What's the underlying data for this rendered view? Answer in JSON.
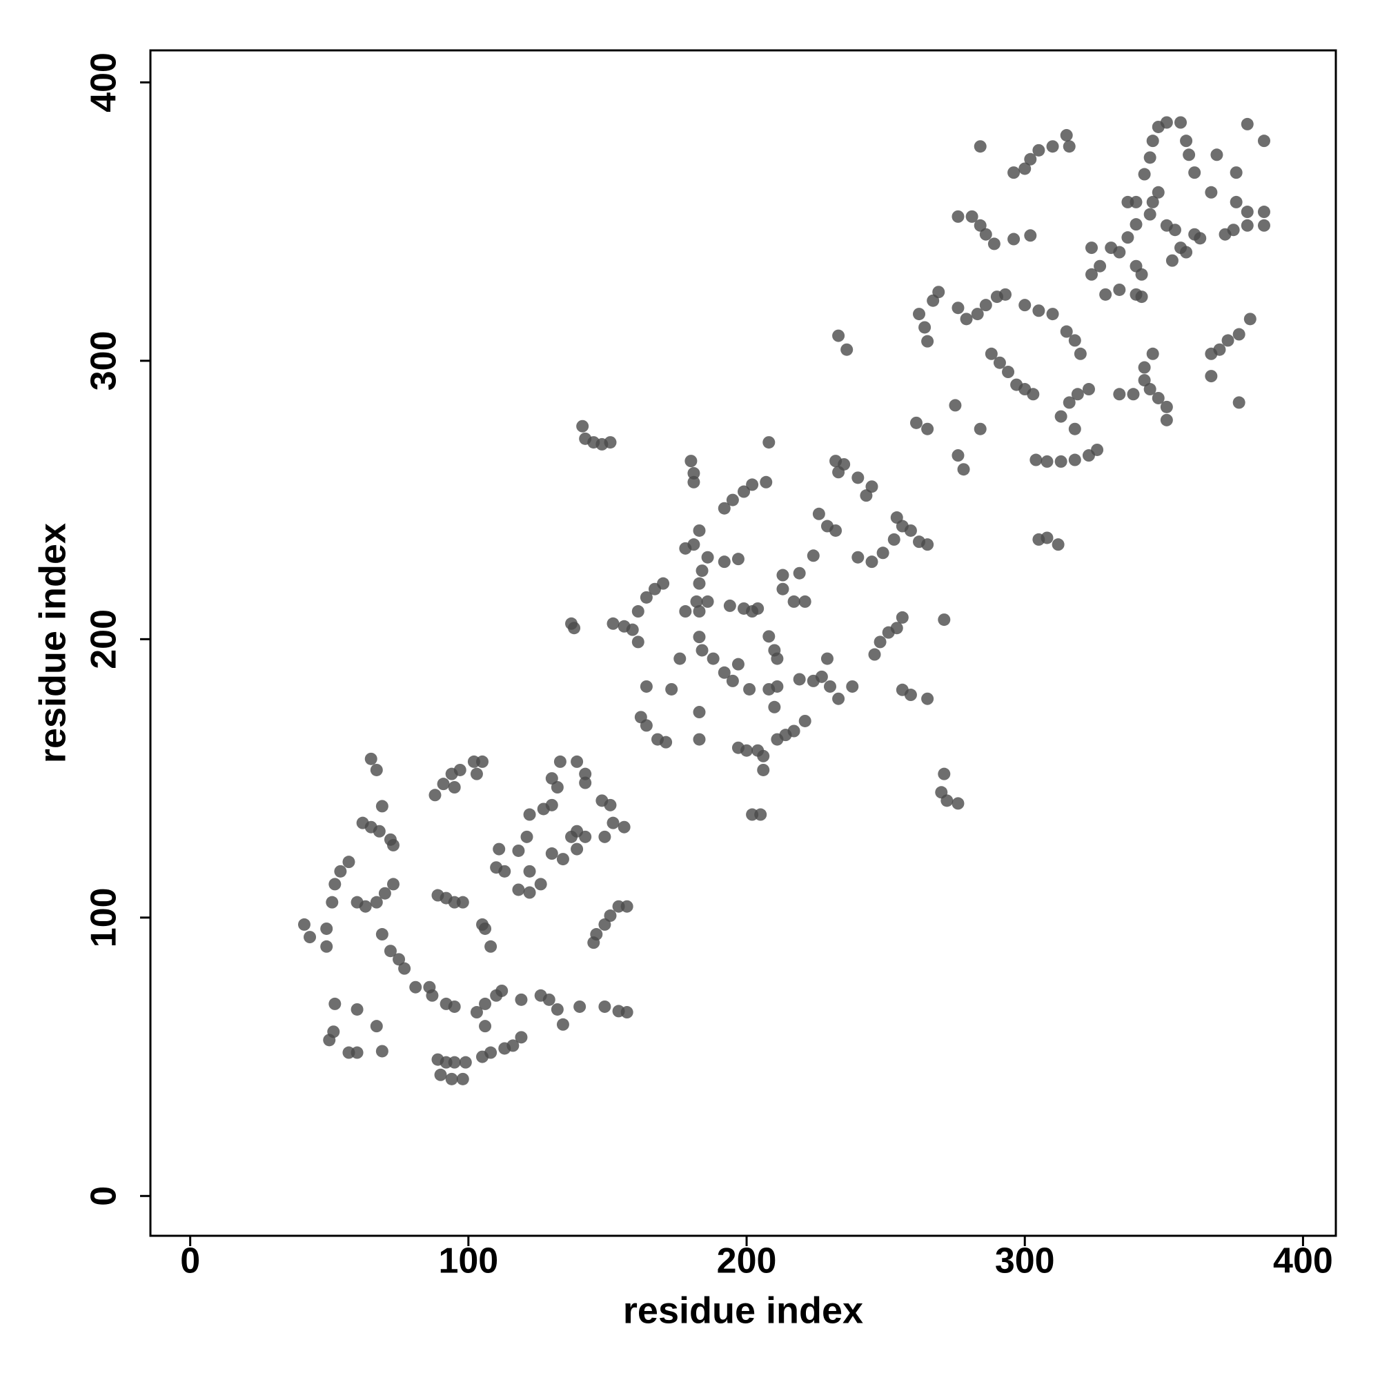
{
  "chart_data": {
    "type": "scatter",
    "xlabel": "residue index",
    "ylabel": "residue index",
    "xlim": [
      -14.3,
      411.8
    ],
    "ylim": [
      -14.3,
      411.5
    ],
    "xticks": [
      0,
      100,
      200,
      300,
      400
    ],
    "yticks": [
      0,
      100,
      200,
      300,
      400
    ],
    "color": "#4a4a4a",
    "alpha": 0.8,
    "x": [
      41,
      43,
      49,
      49,
      51,
      52,
      54,
      57,
      60,
      63,
      67,
      70,
      73,
      62,
      65,
      68,
      72,
      73,
      65,
      67,
      69,
      69,
      72,
      75,
      77,
      81,
      86,
      87,
      92,
      95,
      52,
      51.5,
      50,
      60,
      67,
      57,
      60,
      69,
      89,
      92,
      95,
      99,
      90,
      94,
      98,
      105,
      108,
      113,
      116,
      119,
      103,
      106,
      110,
      112,
      106,
      119,
      126,
      129,
      132,
      134,
      140,
      149,
      154,
      157,
      89,
      92,
      95,
      98,
      105,
      106,
      108,
      88,
      91,
      94,
      97,
      102,
      105,
      103,
      95,
      110,
      111,
      118,
      113,
      118,
      122,
      126,
      122,
      121,
      122,
      127,
      130,
      132,
      130,
      133,
      139,
      142,
      142,
      130,
      134,
      137,
      139,
      142,
      139,
      148,
      151,
      152,
      156,
      149,
      145,
      146,
      149,
      151,
      154,
      157,
      137,
      138,
      141,
      142,
      145,
      148,
      151,
      152,
      156,
      159,
      161,
      161,
      164,
      167,
      170,
      164,
      162,
      164,
      168,
      171,
      173,
      176,
      178,
      183,
      186,
      182,
      183,
      184,
      186,
      181,
      178,
      183,
      180,
      181,
      181,
      183,
      183,
      183,
      184,
      188,
      192,
      197,
      194,
      199,
      202,
      204,
      192,
      195,
      197,
      201,
      192,
      195,
      199,
      202,
      207,
      208,
      197,
      200,
      204,
      206,
      206,
      202,
      205,
      208,
      210,
      211,
      208,
      211,
      210,
      211,
      214,
      217,
      221,
      213,
      213,
      217,
      221,
      219,
      224,
      219,
      224,
      227,
      229,
      230,
      233,
      238,
      226,
      229,
      232,
      233,
      232,
      235,
      240,
      245,
      243,
      240,
      245,
      249,
      253,
      254,
      256,
      259,
      262,
      265,
      246,
      248,
      251,
      254,
      256,
      256,
      259,
      265,
      233,
      236,
      271,
      271,
      270,
      272,
      276,
      261,
      265,
      275,
      276,
      278,
      284,
      262,
      264,
      265,
      267,
      269,
      276,
      279,
      283,
      286,
      290,
      293,
      288,
      291,
      294,
      297,
      300,
      303,
      276,
      281,
      284,
      286,
      289,
      296,
      302,
      284,
      296,
      300,
      302,
      305,
      310,
      315,
      316,
      300,
      305,
      310,
      315,
      318,
      320,
      304,
      308,
      313,
      318,
      323,
      326,
      313,
      316,
      319,
      323,
      318,
      305,
      308,
      312,
      324,
      324,
      327,
      331,
      334,
      329,
      334,
      340,
      340,
      342,
      337,
      340,
      337,
      340,
      342,
      334,
      339,
      343,
      345,
      348,
      351,
      343,
      346,
      351,
      345,
      346,
      348,
      343,
      345,
      346,
      348,
      351,
      356,
      358,
      359,
      351,
      354,
      356,
      353,
      358,
      361,
      363,
      361,
      367,
      369,
      372,
      375,
      380,
      376,
      380,
      386,
      386,
      376,
      380,
      386,
      367,
      370,
      373,
      377,
      381,
      367,
      377
    ],
    "values": [
      97.5,
      93,
      96,
      89.6,
      105.5,
      112,
      116.6,
      120,
      105.5,
      104,
      105.5,
      108.7,
      112,
      134,
      132.5,
      131,
      128,
      126,
      157,
      153,
      140,
      94,
      88,
      85,
      81.7,
      75,
      75,
      72,
      69,
      68,
      69,
      59,
      56,
      67,
      61,
      51.5,
      51.5,
      52,
      49,
      48,
      48,
      48,
      43.5,
      42,
      42,
      50,
      51.5,
      53,
      54,
      57,
      66,
      69,
      72,
      73.7,
      61,
      70.5,
      72,
      70.5,
      67,
      61.6,
      68,
      68,
      66.4,
      66,
      108,
      107,
      105.5,
      105.5,
      97.5,
      96,
      89.6,
      144,
      148,
      151.6,
      153,
      156,
      156,
      151.6,
      146.8,
      118,
      124.6,
      124,
      116.6,
      110,
      109,
      112,
      116.6,
      129,
      137,
      139,
      140.4,
      146.8,
      150,
      156,
      156,
      151.6,
      148.4,
      123,
      121,
      129,
      131,
      129,
      124.6,
      142,
      140.4,
      134,
      132.5,
      129,
      91,
      94,
      97.5,
      100.7,
      104,
      104,
      205.6,
      204,
      276.5,
      272,
      270.7,
      270,
      270.7,
      205.6,
      204.6,
      203.4,
      199,
      210,
      215,
      218,
      220,
      183,
      172,
      169,
      164,
      163,
      182,
      193,
      210,
      210,
      213.5,
      213.5,
      220,
      224.6,
      229.4,
      234,
      232.6,
      239,
      264,
      259.6,
      256.4,
      173.8,
      164,
      200.8,
      196,
      193,
      227.8,
      228.8,
      212,
      211,
      210,
      211,
      188,
      185,
      191,
      182,
      247,
      250,
      253,
      255.5,
      256.4,
      270.7,
      161,
      160,
      160,
      158,
      153,
      137,
      137,
      201,
      196,
      193,
      182,
      183,
      175.6,
      164,
      165.6,
      167,
      170.6,
      223,
      218,
      213.5,
      213.5,
      223.7,
      230,
      185.6,
      185,
      186.5,
      193,
      183,
      178.6,
      183,
      245,
      240.6,
      239,
      260,
      264,
      262.8,
      258,
      254.8,
      251.6,
      229.4,
      227.8,
      231,
      235.8,
      243.7,
      240.6,
      239,
      235,
      234,
      194.5,
      199,
      202.4,
      204,
      207.8,
      181.8,
      180,
      178.6,
      309,
      304,
      207,
      151.6,
      145,
      142,
      141,
      277.7,
      275.5,
      284,
      266,
      261,
      275.5,
      316.8,
      312,
      307,
      321.6,
      324.7,
      319,
      315,
      316.8,
      320,
      323,
      323.8,
      302.5,
      299.3,
      296,
      291.4,
      289.8,
      288,
      351.8,
      351.8,
      348.6,
      345.4,
      342,
      343.7,
      345,
      377,
      367.6,
      369,
      372.4,
      375.6,
      377,
      381,
      377,
      320,
      318,
      316.8,
      310.5,
      307.3,
      302.5,
      264.4,
      263.8,
      263.8,
      264.4,
      266,
      268,
      280,
      285,
      288,
      289.8,
      275.5,
      235.8,
      236.4,
      234,
      340.6,
      331,
      334,
      340.6,
      339,
      323.8,
      325.5,
      323.8,
      334,
      331,
      344.3,
      349,
      357,
      357,
      323,
      288,
      288,
      293,
      289.8,
      286.6,
      283.4,
      297.6,
      302.5,
      278.7,
      352.6,
      357,
      360.5,
      367,
      373,
      379,
      384,
      385.6,
      385.6,
      379,
      374,
      348.6,
      347,
      340.6,
      336,
      339,
      345.4,
      344,
      367.6,
      360.5,
      374,
      345.4,
      347,
      348.6,
      357,
      353.5,
      353.5,
      348.6,
      367.6,
      385,
      379,
      302.5,
      304,
      307.3,
      309.5,
      315,
      294.5,
      285
    ]
  }
}
